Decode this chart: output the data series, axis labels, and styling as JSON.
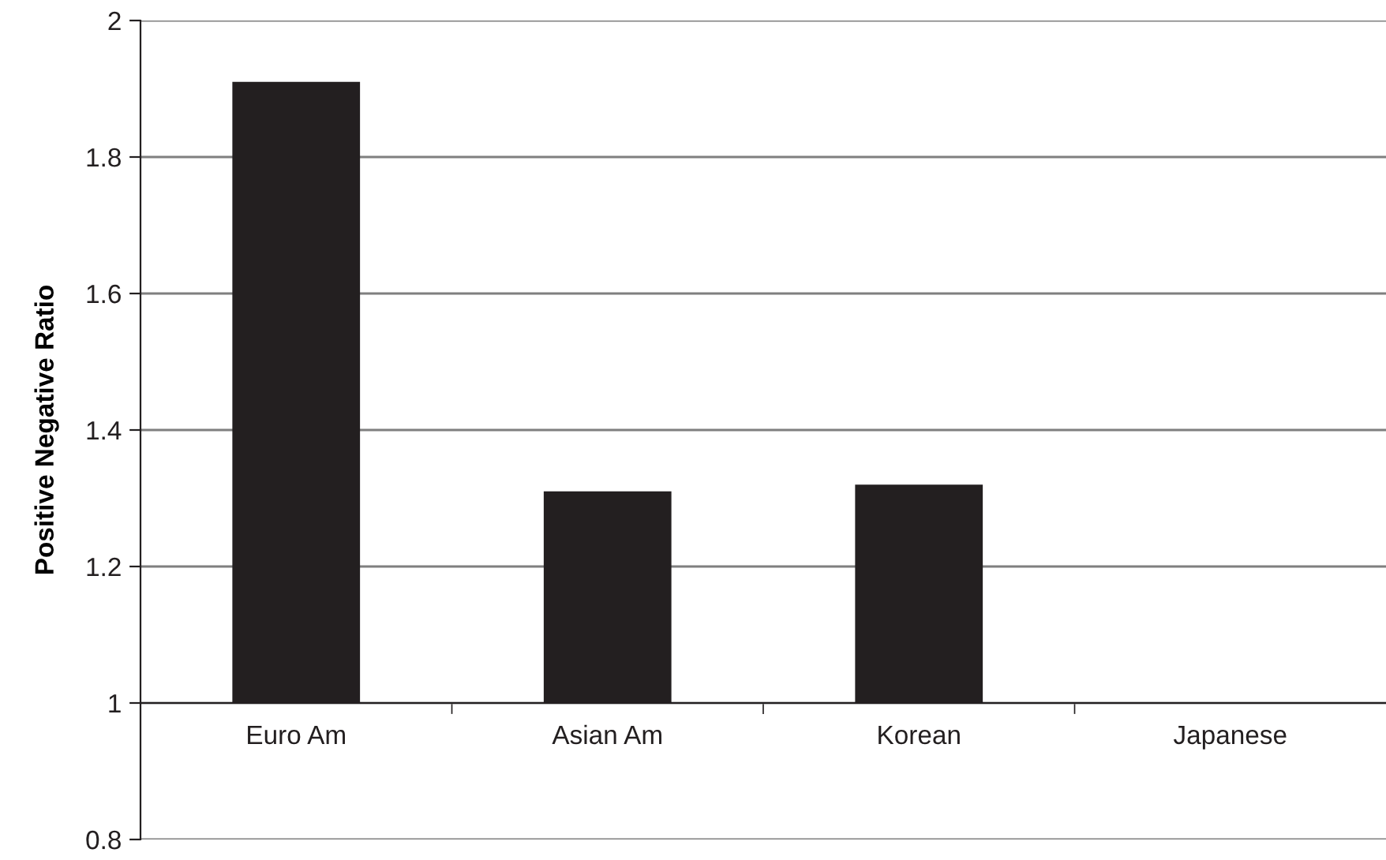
{
  "chart_data": {
    "type": "bar",
    "ylabel": "Positive Negative Ratio",
    "categories": [
      "Euro Am",
      "Asian Am",
      "Korean",
      "Japanese"
    ],
    "base": [
      1,
      1,
      1,
      null
    ],
    "values": [
      0.91,
      0.31,
      0.32,
      null
    ],
    "color": "#231f20",
    "ylim": [
      0.8,
      2
    ],
    "yticks": [
      0.8,
      1,
      1.2,
      1.4,
      1.6,
      1.8,
      2
    ],
    "grid": "y",
    "legend": false
  }
}
